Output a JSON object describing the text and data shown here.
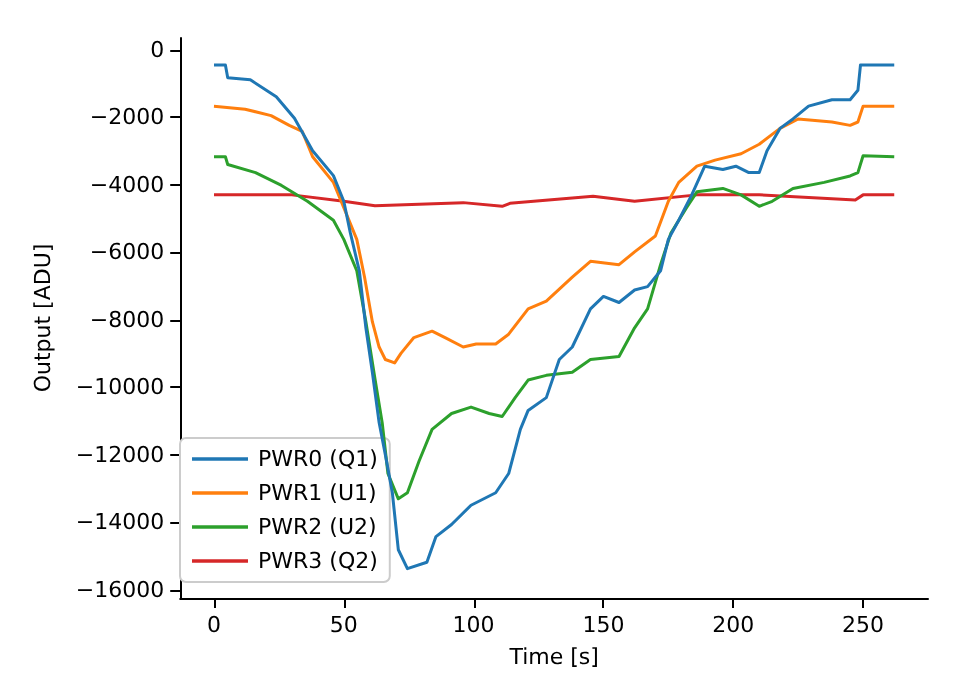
{
  "chart_data": {
    "type": "line",
    "xlabel": "Time [s]",
    "ylabel": "Output [ADU]",
    "xlim": [
      -13,
      275
    ],
    "ylim": [
      -16250,
      350
    ],
    "xticks": [
      0,
      50,
      100,
      150,
      200,
      250
    ],
    "yticks": [
      -16000,
      -14000,
      -12000,
      -10000,
      -8000,
      -6000,
      -4000,
      -2000,
      0
    ],
    "grid": false,
    "legend": "bottom left",
    "marker": "none",
    "line_style": "solid",
    "series": [
      {
        "name": "PWR0 (Q1)",
        "color": "#1f77b4",
        "x": [
          0,
          4.4,
          5.3,
          14,
          24,
          31,
          38,
          46,
          50,
          52.5,
          56,
          58.5,
          61,
          63.6,
          66,
          68.7,
          71,
          74.5,
          82,
          85.5,
          91.5,
          99,
          108.5,
          113.5,
          118,
          121,
          128,
          133,
          138,
          145,
          150,
          156,
          162,
          167,
          172,
          175,
          179,
          184,
          189,
          196,
          201,
          206,
          210,
          213,
          218,
          223,
          229,
          238,
          245,
          248,
          249,
          262
        ],
        "values": [
          -450,
          -450,
          -830,
          -890,
          -1390,
          -2030,
          -2990,
          -3730,
          -4490,
          -5420,
          -6560,
          -8240,
          -9560,
          -11050,
          -12000,
          -13130,
          -14820,
          -15380,
          -15190,
          -14430,
          -14070,
          -13500,
          -13130,
          -12560,
          -11250,
          -10690,
          -10310,
          -9180,
          -8810,
          -7680,
          -7310,
          -7490,
          -7120,
          -7020,
          -6550,
          -5620,
          -5050,
          -4300,
          -3450,
          -3550,
          -3450,
          -3640,
          -3640,
          -2990,
          -2330,
          -2050,
          -1670,
          -1480,
          -1480,
          -1200,
          -450,
          -450
        ]
      },
      {
        "name": "PWR1 (U1)",
        "color": "#ff7f0e",
        "x": [
          0,
          12,
          22,
          29,
          34,
          38,
          46,
          50,
          55,
          58,
          61,
          63.6,
          66,
          69.6,
          72,
          77,
          84,
          89,
          96,
          101,
          108.5,
          113.5,
          121,
          128,
          138,
          145,
          156,
          162,
          170,
          175,
          179,
          186,
          193,
          203,
          210,
          218,
          225,
          238,
          245,
          248,
          250,
          262
        ],
        "values": [
          -1670,
          -1760,
          -1950,
          -2240,
          -2420,
          -3170,
          -3930,
          -4680,
          -5620,
          -6740,
          -8060,
          -8810,
          -9180,
          -9280,
          -9000,
          -8530,
          -8340,
          -8530,
          -8810,
          -8720,
          -8720,
          -8430,
          -7680,
          -7450,
          -6740,
          -6270,
          -6370,
          -5990,
          -5520,
          -4490,
          -3930,
          -3450,
          -3270,
          -3080,
          -2800,
          -2330,
          -2050,
          -2140,
          -2240,
          -2140,
          -1670,
          -1670
        ]
      },
      {
        "name": "PWR2 (U2)",
        "color": "#2ca02c",
        "x": [
          0,
          4.4,
          5.3,
          16,
          26,
          36,
          46,
          50,
          55,
          58.5,
          62,
          64.8,
          67,
          71,
          74.5,
          79,
          84,
          91.5,
          99,
          106,
          111,
          116,
          121,
          128,
          138,
          145,
          156,
          162,
          167,
          172,
          176,
          182,
          186,
          196,
          203,
          210,
          215,
          223,
          235,
          245,
          248,
          250,
          262
        ],
        "values": [
          -3170,
          -3170,
          -3400,
          -3640,
          -4020,
          -4490,
          -5050,
          -5620,
          -6550,
          -8060,
          -9750,
          -11060,
          -12560,
          -13310,
          -13130,
          -12190,
          -11250,
          -10780,
          -10590,
          -10780,
          -10870,
          -10310,
          -9790,
          -9650,
          -9560,
          -9180,
          -9090,
          -8240,
          -7680,
          -6370,
          -5430,
          -4680,
          -4210,
          -4110,
          -4300,
          -4640,
          -4490,
          -4110,
          -3930,
          -3740,
          -3640,
          -3140,
          -3170
        ]
      },
      {
        "name": "PWR3 (Q2)",
        "color": "#d62728",
        "x": [
          0,
          30,
          50,
          62,
          96,
          111,
          114,
          146,
          162,
          186,
          210,
          247,
          250,
          262
        ],
        "values": [
          -4300,
          -4300,
          -4490,
          -4620,
          -4530,
          -4640,
          -4550,
          -4340,
          -4490,
          -4300,
          -4300,
          -4450,
          -4300,
          -4300
        ]
      }
    ]
  }
}
